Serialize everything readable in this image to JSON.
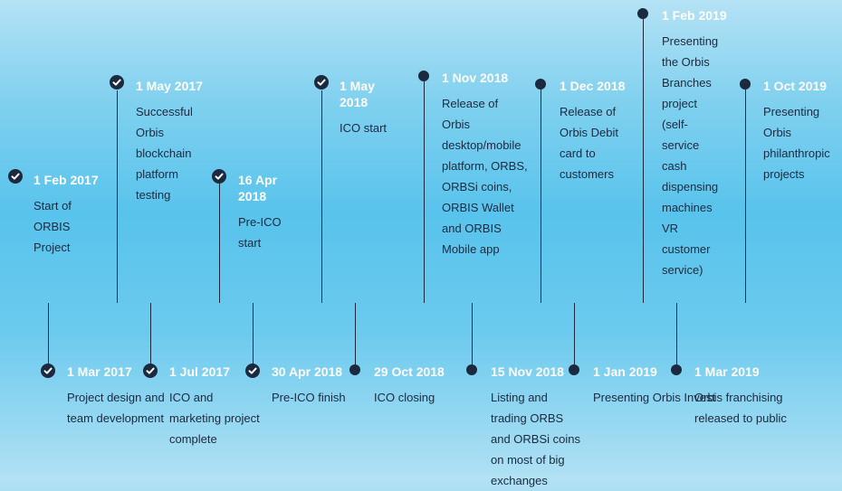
{
  "top": [
    {
      "date": "1 Feb 2017",
      "desc": "Start of ORBIS Project",
      "marker": "check"
    },
    {
      "date": "1 May 2017",
      "desc": "Successful Orbis blockchain platform testing",
      "marker": "check"
    },
    {
      "date": "16 Apr 2018",
      "desc": "Pre-ICO start",
      "marker": "check"
    },
    {
      "date": "1 May 2018",
      "desc": "ICO start",
      "marker": "check"
    },
    {
      "date": "1 Nov 2018",
      "desc": "Release of Orbis desktop/mobile platform, ORBS, ORBSi coins, ORBIS Wallet and ORBIS Mobile app",
      "marker": "dot"
    },
    {
      "date": "1 Dec 2018",
      "desc": "Release of Orbis Debit card to customers",
      "marker": "dot"
    },
    {
      "date": "1 Feb 2019",
      "desc": "Presenting the Orbis Branches project (self-service cash dispensing machines VR customer service)",
      "marker": "dot"
    },
    {
      "date": "1 Oct 2019",
      "desc": "Presenting Orbis philanthropic projects",
      "marker": "dot"
    }
  ],
  "bottom": [
    {
      "date": "1 Mar 2017",
      "desc": "Project design and team development",
      "marker": "check"
    },
    {
      "date": "1 Jul 2017",
      "desc": "ICO and marketing project complete",
      "marker": "check"
    },
    {
      "date": "30 Apr 2018",
      "desc": "Pre-ICO finish",
      "marker": "check"
    },
    {
      "date": "29 Oct 2018",
      "desc": "ICO closing",
      "marker": "dot"
    },
    {
      "date": "15 Nov 2018",
      "desc": "Listing and trading ORBS and ORBSi coins on most of big exchanges",
      "marker": "dot"
    },
    {
      "date": "1 Jan 2019",
      "desc": "Presenting Orbis Invest",
      "marker": "dot"
    },
    {
      "date": "1 Mar 2019",
      "desc": "Orbis franchising released to public",
      "marker": "dot"
    }
  ],
  "colors": {
    "ink": "#1b2a3e",
    "date_text": "#ffffff"
  }
}
